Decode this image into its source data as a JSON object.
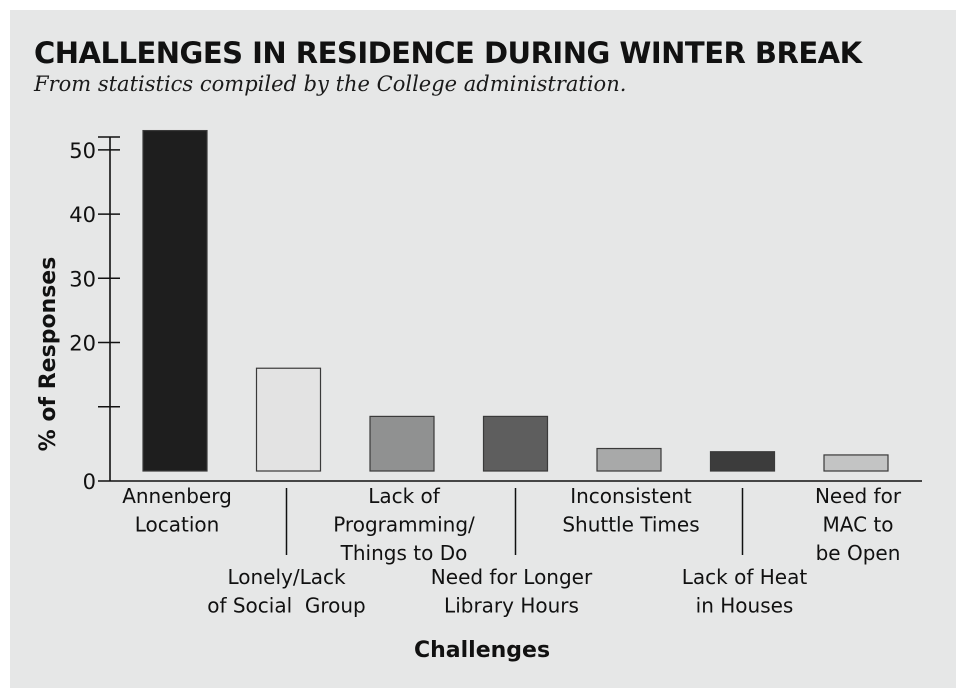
{
  "chart_data": {
    "type": "bar",
    "title": "CHALLENGES IN RESIDENCE DURING WINTER BREAK",
    "subtitle": "From statistics compiled by the College administration.",
    "xlabel": "Challenges",
    "ylabel": "% of Responses",
    "ylim": [
      0,
      52
    ],
    "yticks": [
      {
        "value": 0,
        "label": "0"
      },
      {
        "value": 10,
        "label": ""
      },
      {
        "value": 20,
        "label": "20"
      },
      {
        "value": 30,
        "label": "30"
      },
      {
        "value": 40,
        "label": "40"
      },
      {
        "value": 50,
        "label": "50"
      },
      {
        "value": 52,
        "label": ""
      }
    ],
    "categories": [
      [
        "Annenberg",
        "Location"
      ],
      [
        "Lonely/Lack",
        "of Social  Group"
      ],
      [
        "Lack of",
        "Programming/",
        "Things to Do"
      ],
      [
        "Need for Longer",
        "Library Hours"
      ],
      [
        "Inconsistent",
        "Shuttle Times"
      ],
      [
        "Lack of Heat",
        "in Houses"
      ],
      [
        "Need for",
        "MAC to",
        "be Open"
      ]
    ],
    "values": [
      53,
      16,
      8.5,
      8.5,
      3.5,
      3,
      2.5
    ],
    "colors": [
      "#1e1e1e",
      "#e3e3e3",
      "#909191",
      "#5e5e5e",
      "#a8a9a9",
      "#3c3c3c",
      "#c3c4c4"
    ],
    "grid": false,
    "legend": "none"
  }
}
